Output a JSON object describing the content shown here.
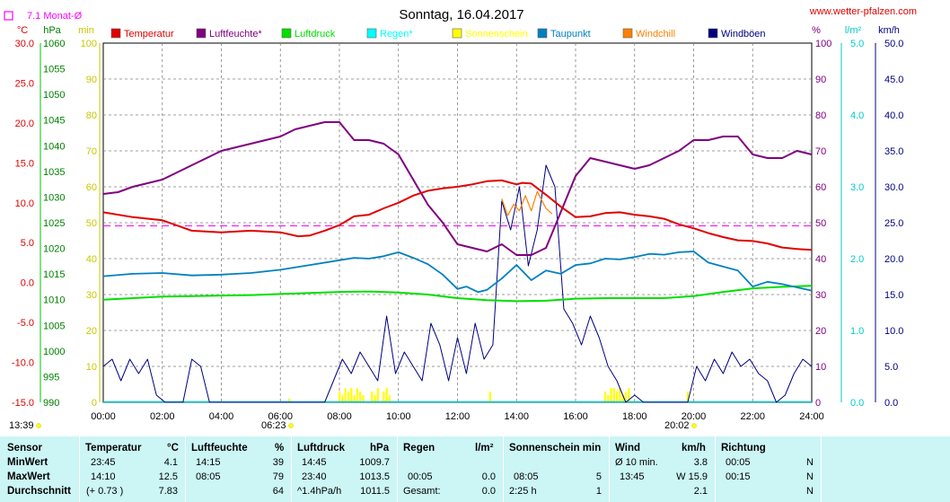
{
  "title": "Sonntag, 16.04.2017",
  "website": "www.wetter-pfalzen.com",
  "monthly_avg_label": "7.1 Monat-Ø",
  "unit_headers": {
    "c": "°C",
    "hpa": "hPa",
    "min": "min",
    "pct": "%",
    "wm2": "l/m²",
    "kmh": "km/h"
  },
  "sunrise": "06:23",
  "sunset": "20:02",
  "current_time": "13:39",
  "legend": [
    {
      "label": "Temperatur",
      "color": "#e00000"
    },
    {
      "label": "Luftfeuchte*",
      "color": "#800080"
    },
    {
      "label": "Luftdruck",
      "color": "#00e000"
    },
    {
      "label": "Regen*",
      "color": "#00ffff"
    },
    {
      "label": "Sonnenschein",
      "color": "#ffff00"
    },
    {
      "label": "Taupunkt",
      "color": "#0080c0"
    },
    {
      "label": "Windchill",
      "color": "#ff8000"
    },
    {
      "label": "Windböen",
      "color": "#000080"
    }
  ],
  "colors": {
    "temp": "#e00000",
    "hum": "#800080",
    "press": "#00e000",
    "rain": "#00cccc",
    "sun": "#ffff00",
    "dew": "#0080c0",
    "chill": "#ff8000",
    "gust": "#000080",
    "avg": "#ff00ff",
    "grid": "#808080",
    "cyan_axis": "#00cccc"
  },
  "axes": {
    "temp_ticks": [
      "30.0",
      "25.0",
      "20.0",
      "15.0",
      "10.0",
      "5.0",
      "0.0",
      "-5.0",
      "-10.0",
      "-15.0"
    ],
    "press_ticks": [
      "1060",
      "1055",
      "1050",
      "1045",
      "1040",
      "1035",
      "1030",
      "1025",
      "1020",
      "1015",
      "1010",
      "1005",
      "1000",
      "995",
      "990"
    ],
    "min_ticks": [
      "100",
      "90",
      "80",
      "70",
      "60",
      "50",
      "40",
      "30",
      "20",
      "10",
      "0"
    ],
    "pct_ticks": [
      "100",
      "90",
      "80",
      "70",
      "60",
      "50",
      "40",
      "30",
      "20",
      "10",
      "0"
    ],
    "rain_ticks": [
      "5.0",
      "4.0",
      "3.0",
      "2.0",
      "1.0",
      "0.0"
    ],
    "kmh_ticks": [
      "50.0",
      "45.0",
      "40.0",
      "35.0",
      "30.0",
      "25.0",
      "20.0",
      "15.0",
      "10.0",
      "5.0",
      "0.0"
    ],
    "time_ticks": [
      "00:00",
      "02:00",
      "04:00",
      "06:00",
      "08:00",
      "10:00",
      "12:00",
      "14:00",
      "16:00",
      "18:00",
      "20:00",
      "22:00",
      "24:00"
    ]
  },
  "chart_data": {
    "type": "line",
    "title": "Sonntag, 16.04.2017",
    "x_unit": "hour of day",
    "xlim": [
      0,
      24
    ],
    "monthly_avg_temp": 7.1,
    "series": [
      {
        "name": "Temperatur",
        "unit": "°C",
        "axis": "temp",
        "ylim": [
          -15,
          30
        ],
        "x": [
          0,
          1,
          2,
          3,
          4,
          5,
          6,
          6.6,
          7,
          7.5,
          8,
          8.5,
          9,
          9.5,
          10,
          10.5,
          11,
          11.5,
          12,
          12.5,
          13,
          13.5,
          14,
          14.2,
          14.5,
          15,
          15.5,
          16,
          16.5,
          17,
          17.5,
          18,
          18.5,
          19,
          19.5,
          20,
          20.5,
          21,
          21.5,
          22,
          22.5,
          23,
          23.5,
          24
        ],
        "y": [
          8.8,
          8.2,
          7.8,
          6.5,
          6.3,
          6.5,
          6.3,
          5.8,
          5.9,
          6.5,
          7.2,
          8.3,
          8.5,
          9.3,
          10.0,
          10.9,
          11.5,
          11.8,
          12.0,
          12.3,
          12.7,
          12.8,
          12.3,
          12.5,
          12.4,
          11.0,
          9.5,
          8.2,
          8.3,
          8.7,
          8.8,
          8.5,
          8.3,
          8.0,
          7.3,
          6.8,
          6.2,
          5.7,
          5.3,
          5.2,
          4.9,
          4.4,
          4.2,
          4.1
        ]
      },
      {
        "name": "Luftfeuchte*",
        "unit": "%",
        "axis": "pct",
        "ylim": [
          0,
          100
        ],
        "x": [
          0,
          0.5,
          1,
          1.5,
          2,
          2.5,
          3,
          3.5,
          4,
          4.5,
          5,
          5.5,
          6,
          6.5,
          7,
          7.5,
          8,
          8.5,
          9,
          9.5,
          10,
          10.5,
          11,
          11.5,
          12,
          12.5,
          13,
          13.5,
          14,
          14.5,
          15,
          15.5,
          16,
          16.5,
          17,
          17.5,
          18,
          18.5,
          19,
          19.5,
          20,
          20.5,
          21,
          21.5,
          22,
          22.5,
          23,
          23.5,
          24
        ],
        "y": [
          58,
          58.5,
          60,
          61,
          62,
          64,
          66,
          68,
          70,
          71,
          72,
          73,
          74,
          76,
          77,
          78,
          78,
          73,
          73,
          72,
          69,
          62,
          55,
          50,
          44,
          43,
          42,
          44,
          41,
          41,
          43,
          53,
          63,
          68,
          67,
          66,
          65,
          66,
          68,
          70,
          73,
          73,
          74,
          74,
          69,
          68,
          68,
          70,
          69
        ]
      },
      {
        "name": "Luftdruck",
        "unit": "hPa",
        "axis": "press",
        "ylim": [
          990,
          1060
        ],
        "x": [
          0,
          1,
          2,
          3,
          4,
          5,
          6,
          7,
          8,
          9,
          10,
          11,
          12,
          13,
          14,
          15,
          16,
          17,
          18,
          19,
          20,
          21,
          22,
          23,
          24
        ],
        "y": [
          1010.0,
          1010.3,
          1010.6,
          1010.7,
          1010.8,
          1010.9,
          1011.1,
          1011.3,
          1011.5,
          1011.6,
          1011.4,
          1011.0,
          1010.3,
          1009.9,
          1009.7,
          1009.8,
          1010.2,
          1010.3,
          1010.3,
          1010.3,
          1010.7,
          1011.5,
          1012.2,
          1012.5,
          1012.7
        ]
      },
      {
        "name": "Taupunkt",
        "unit": "°C",
        "axis": "temp",
        "ylim": [
          -15,
          30
        ],
        "x": [
          0,
          1,
          2,
          3,
          4,
          5,
          6,
          7,
          8,
          8.5,
          9,
          9.5,
          10,
          10.5,
          11,
          11.5,
          12,
          12.3,
          12.7,
          13,
          13.5,
          14,
          14.5,
          15,
          15.5,
          16,
          16.5,
          17,
          17.5,
          18,
          18.5,
          19,
          19.5,
          20,
          20.5,
          21,
          21.5,
          22,
          22.5,
          23,
          23.5,
          24
        ],
        "y": [
          0.8,
          1.1,
          1.2,
          0.9,
          1.0,
          1.2,
          1.6,
          2.2,
          2.8,
          3.1,
          3.0,
          3.3,
          3.8,
          3.1,
          2.3,
          1.0,
          -0.8,
          -0.5,
          -1.2,
          -0.9,
          0.5,
          2.2,
          0.3,
          1.5,
          1.1,
          2.2,
          2.4,
          3.0,
          2.9,
          3.2,
          3.6,
          3.5,
          3.8,
          3.9,
          2.5,
          2.0,
          1.5,
          -0.5,
          0.1,
          -0.2,
          -0.6,
          -1.0
        ]
      },
      {
        "name": "Windchill",
        "unit": "°C",
        "axis": "temp",
        "ylim": [
          -15,
          30
        ],
        "x": [
          13.5,
          13.7,
          13.9,
          14.1,
          14.3,
          14.5,
          14.7,
          14.9,
          15.0,
          15.2
        ],
        "y": [
          10.5,
          8.4,
          9.8,
          9.0,
          10.9,
          9.0,
          11.4,
          10.0,
          9.3,
          8.6
        ]
      },
      {
        "name": "Windböen",
        "unit": "km/h",
        "axis": "kmh",
        "ylim": [
          0,
          50
        ],
        "x": [
          0,
          0.3,
          0.6,
          0.9,
          1.2,
          1.5,
          1.8,
          2.1,
          2.4,
          2.7,
          3.0,
          3.3,
          3.6,
          3.9,
          4.2,
          4.5,
          4.8,
          5.1,
          5.4,
          5.7,
          6,
          6.3,
          6.6,
          6.9,
          7.2,
          7.5,
          7.8,
          8.1,
          8.4,
          8.7,
          9,
          9.3,
          9.6,
          9.9,
          10.2,
          10.5,
          10.8,
          11.1,
          11.4,
          11.7,
          12,
          12.3,
          12.6,
          12.9,
          13.2,
          13.5,
          13.8,
          14.1,
          14.4,
          14.7,
          15,
          15.3,
          15.6,
          15.9,
          16.2,
          16.5,
          16.8,
          17.1,
          17.4,
          17.7,
          18,
          18.3,
          18.6,
          18.9,
          19.2,
          19.5,
          19.8,
          20.1,
          20.4,
          20.7,
          21,
          21.3,
          21.6,
          21.9,
          22.2,
          22.5,
          22.8,
          23.1,
          23.4,
          23.7,
          24
        ],
        "y": [
          5,
          6,
          3,
          6,
          4,
          6,
          1,
          0,
          0,
          0,
          6,
          5,
          0,
          0,
          0,
          0,
          0,
          0,
          0,
          0,
          0,
          0,
          0,
          0,
          0,
          0,
          3,
          6,
          4,
          7,
          5,
          3,
          12,
          4,
          7,
          5,
          3,
          11,
          8,
          3,
          9,
          4,
          11,
          6,
          8,
          28,
          24,
          30,
          19,
          24,
          33,
          30,
          13,
          11,
          8,
          12,
          9,
          5,
          3,
          0,
          1,
          0,
          0,
          0,
          0,
          0,
          0,
          5,
          3,
          6,
          4,
          7,
          5,
          6,
          4,
          3,
          0,
          1,
          4,
          6,
          5
        ]
      }
    ],
    "sunshine_minutes_x": [
      6.3,
      8.0,
      8.1,
      8.2,
      8.3,
      8.4,
      8.5,
      8.6,
      8.7,
      8.8,
      9.1,
      9.2,
      9.3,
      9.5,
      9.6,
      9.7,
      13.1,
      17.0,
      17.1,
      17.2,
      17.3,
      17.4,
      17.5,
      17.6,
      17.7,
      17.8,
      19.8
    ],
    "sunshine_minute_values": [
      1,
      3,
      2,
      4,
      3,
      4,
      2,
      4,
      3,
      2,
      3,
      2,
      4,
      3,
      4,
      2,
      3,
      3,
      2,
      4,
      4,
      3,
      4,
      2,
      3,
      4,
      3
    ]
  },
  "stats": {
    "headers": [
      "Sensor",
      "Temperatur",
      "°C",
      "Luftfeuchte",
      "%",
      "Luftdruck",
      "hPa",
      "Regen",
      "l/m²",
      "Sonnenschein min",
      "Wind",
      "km/h",
      "Richtung"
    ],
    "min": {
      "label": "MinWert",
      "temp_time": "23:45",
      "temp_val": "4.1",
      "hum_time": "14:15",
      "hum_val": "39",
      "press_time": "14:45",
      "press_val": "1009.7",
      "rain_time": "",
      "rain_val": "",
      "sun_time": "",
      "sun_val": "",
      "wind_label": "Ø 10 min.",
      "wind_val": "3.8",
      "dir_time": "00:05",
      "dir_val": "N"
    },
    "max": {
      "label": "MaxWert",
      "temp_time": "14:10",
      "temp_val": "12.5",
      "hum_time": "08:05",
      "hum_val": "79",
      "press_time": "23:40",
      "press_val": "1013.5",
      "rain_time": "00:05",
      "rain_val": "0.0",
      "sun_time": "08:05",
      "sun_val": "5",
      "wind_label": "13:45",
      "wind_val": "W 15.9",
      "dir_time": "00:15",
      "dir_val": "N"
    },
    "avg": {
      "label": "Durchschnitt",
      "temp_time": "(+ 0.73 )",
      "temp_val": "7.83",
      "hum_time": "",
      "hum_val": "64",
      "press_time": "^1.4hPa/h",
      "press_val": "1011.5",
      "rain_time": "Gesamt:",
      "rain_val": "0.0",
      "sun_time": "2:25 h",
      "sun_val": "1",
      "wind_label": "",
      "wind_val": "2.1",
      "dir_time": "",
      "dir_val": "N"
    }
  }
}
